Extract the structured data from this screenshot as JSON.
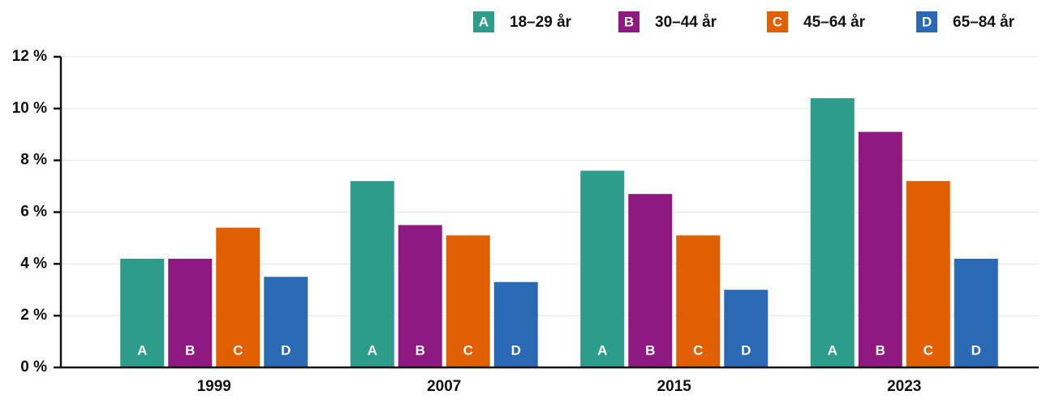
{
  "chart_data": {
    "type": "bar",
    "categories": [
      "1999",
      "2007",
      "2015",
      "2023"
    ],
    "series": [
      {
        "name": "18–29 år",
        "key": "A",
        "color": "#2e9c8a",
        "values": [
          4.2,
          7.2,
          7.6,
          10.4
        ]
      },
      {
        "name": "30–44 år",
        "key": "B",
        "color": "#8e1a80",
        "values": [
          4.2,
          5.5,
          6.7,
          9.1
        ]
      },
      {
        "name": "45–64 år",
        "key": "C",
        "color": "#e06000",
        "values": [
          5.4,
          5.1,
          5.1,
          7.2
        ]
      },
      {
        "name": "65–84 år",
        "key": "D",
        "color": "#2a6ab5",
        "values": [
          3.5,
          3.3,
          3.0,
          4.2
        ]
      }
    ],
    "ylim": [
      0,
      12
    ],
    "yticks": [
      {
        "value": 0,
        "label": "0 %"
      },
      {
        "value": 2,
        "label": "2 %"
      },
      {
        "value": 4,
        "label": "4 %"
      },
      {
        "value": 6,
        "label": "6 %"
      },
      {
        "value": 8,
        "label": "8 %"
      },
      {
        "value": 10,
        "label": "10 %"
      },
      {
        "value": 12,
        "label": "12 %"
      }
    ],
    "grid": true,
    "legend": "top-right"
  }
}
